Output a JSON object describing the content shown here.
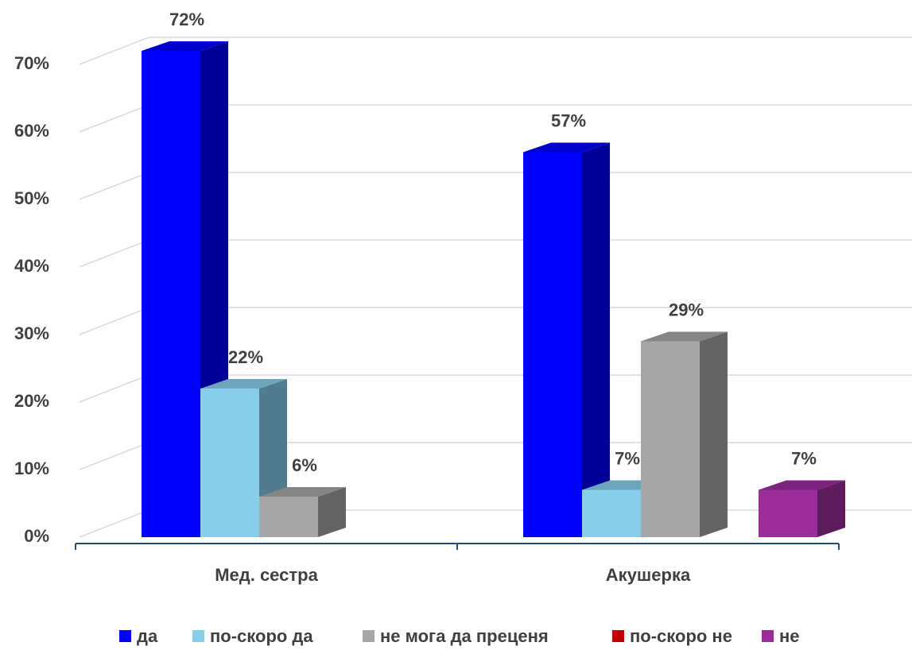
{
  "chart_data": {
    "type": "bar3d",
    "categories": [
      "Мед. сестра",
      "Акушерка"
    ],
    "series": [
      {
        "name": "да",
        "color": "#0000ff",
        "values": [
          72,
          57
        ],
        "value_labels": [
          "72%",
          "57%"
        ]
      },
      {
        "name": "по-скоро да",
        "color": "#87ceeb",
        "values": [
          22,
          7
        ],
        "value_labels": [
          "22%",
          "7%"
        ]
      },
      {
        "name": "не мога да преценя",
        "color": "#a6a6a6",
        "values": [
          6,
          29
        ],
        "value_labels": [
          "6%",
          "29%"
        ]
      },
      {
        "name": "по-скоро не",
        "color": "#c00000",
        "values": [
          null,
          null
        ],
        "value_labels": [
          null,
          null
        ]
      },
      {
        "name": "не",
        "color": "#9b2d9b",
        "values": [
          null,
          7
        ],
        "value_labels": [
          null,
          "7%"
        ]
      }
    ],
    "ylim": [
      0,
      70
    ],
    "yticks": [
      {
        "value": 0,
        "label": "0%"
      },
      {
        "value": 10,
        "label": "10%"
      },
      {
        "value": 20,
        "label": "20%"
      },
      {
        "value": 30,
        "label": "30%"
      },
      {
        "value": 40,
        "label": "40%"
      },
      {
        "value": 50,
        "label": "50%"
      },
      {
        "value": 60,
        "label": "60%"
      },
      {
        "value": 70,
        "label": "70%"
      }
    ],
    "grid": true,
    "legend": "bottom"
  }
}
